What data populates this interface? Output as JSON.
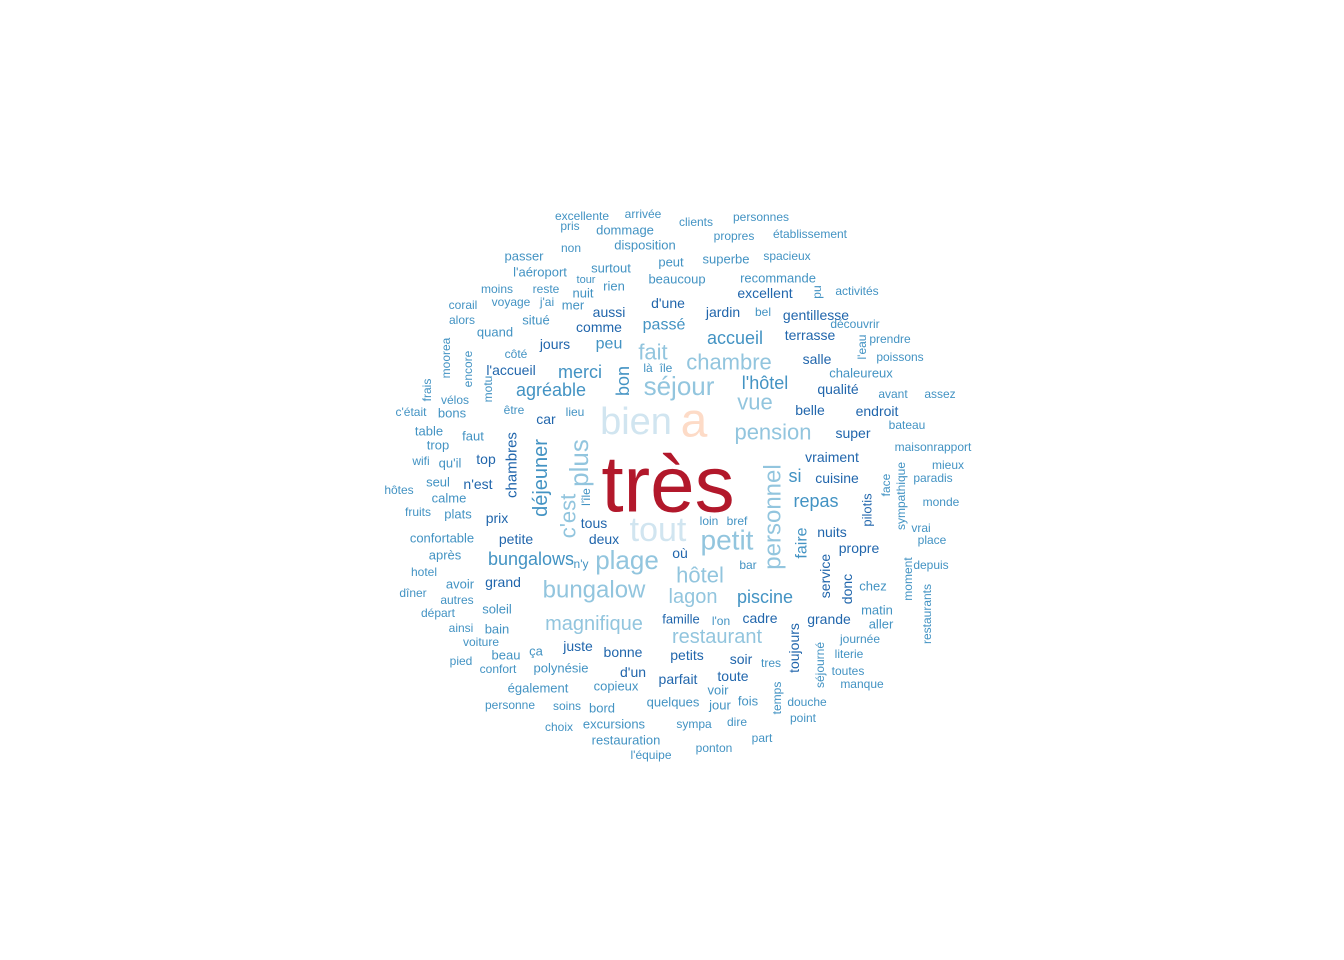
{
  "colors": {
    "c_red": "#b2182b",
    "c_peach": "#fddbc7",
    "c_pale": "#d1e5f0",
    "c_light": "#92c5de",
    "c_mid": "#4393c3",
    "c_dark": "#2166ac"
  },
  "words": [
    {
      "text": "très",
      "color": "c_red"
    },
    {
      "text": "a",
      "color": "c_peach"
    },
    {
      "text": "bien",
      "color": "c_pale"
    },
    {
      "text": "tout",
      "color": "c_pale"
    },
    {
      "text": "petit",
      "color": "c_light"
    },
    {
      "text": "séjour",
      "color": "c_light"
    },
    {
      "text": "plus",
      "color": "c_light"
    },
    {
      "text": "plage",
      "color": "c_light"
    },
    {
      "text": "bungalow",
      "color": "c_light"
    },
    {
      "text": "personnel",
      "color": "c_light"
    },
    {
      "text": "chambre",
      "color": "c_light"
    },
    {
      "text": "pension",
      "color": "c_light"
    },
    {
      "text": "hôtel",
      "color": "c_light"
    },
    {
      "text": "c'est",
      "color": "c_light"
    },
    {
      "text": "magnifique",
      "color": "c_light"
    },
    {
      "text": "restaurant",
      "color": "c_light"
    },
    {
      "text": "vue",
      "color": "c_light"
    },
    {
      "text": "fait",
      "color": "c_light"
    },
    {
      "text": "lagon",
      "color": "c_light"
    },
    {
      "text": "déjeuner",
      "color": "c_mid"
    },
    {
      "text": "bon",
      "color": "c_mid"
    },
    {
      "text": "accueil",
      "color": "c_mid"
    },
    {
      "text": "merci",
      "color": "c_mid"
    },
    {
      "text": "agréable",
      "color": "c_mid"
    },
    {
      "text": "bungalows",
      "color": "c_mid"
    },
    {
      "text": "repas",
      "color": "c_mid"
    },
    {
      "text": "l'hôtel",
      "color": "c_mid"
    },
    {
      "text": "piscine",
      "color": "c_mid"
    },
    {
      "text": "passé",
      "color": "c_mid"
    },
    {
      "text": "peu",
      "color": "c_mid"
    },
    {
      "text": "si",
      "color": "c_mid"
    },
    {
      "text": "faire",
      "color": "c_mid"
    },
    {
      "text": "chambres",
      "color": "c_dark"
    },
    {
      "text": "jardin",
      "color": "c_dark"
    },
    {
      "text": "comme",
      "color": "c_dark"
    },
    {
      "text": "aussi",
      "color": "c_dark"
    },
    {
      "text": "d'une",
      "color": "c_dark"
    },
    {
      "text": "vraiment",
      "color": "c_dark"
    },
    {
      "text": "belle",
      "color": "c_dark"
    },
    {
      "text": "qualité",
      "color": "c_dark"
    },
    {
      "text": "terrasse",
      "color": "c_dark"
    },
    {
      "text": "salle",
      "color": "c_dark"
    },
    {
      "text": "endroit",
      "color": "c_dark"
    },
    {
      "text": "super",
      "color": "c_dark"
    },
    {
      "text": "cuisine",
      "color": "c_dark"
    },
    {
      "text": "nuits",
      "color": "c_dark"
    },
    {
      "text": "propre",
      "color": "c_dark"
    },
    {
      "text": "service",
      "color": "c_dark"
    },
    {
      "text": "donc",
      "color": "c_dark"
    },
    {
      "text": "pilotis",
      "color": "c_dark"
    },
    {
      "text": "toujours",
      "color": "c_dark"
    },
    {
      "text": "petits",
      "color": "c_dark"
    },
    {
      "text": "soir",
      "color": "c_dark"
    },
    {
      "text": "toute",
      "color": "c_dark"
    },
    {
      "text": "parfait",
      "color": "c_dark"
    },
    {
      "text": "d'un",
      "color": "c_dark"
    },
    {
      "text": "bonne",
      "color": "c_dark"
    },
    {
      "text": "juste",
      "color": "c_dark"
    },
    {
      "text": "cadre",
      "color": "c_dark"
    },
    {
      "text": "grande",
      "color": "c_dark"
    },
    {
      "text": "famille",
      "color": "c_dark"
    },
    {
      "text": "où",
      "color": "c_dark"
    },
    {
      "text": "deux",
      "color": "c_dark"
    },
    {
      "text": "petite",
      "color": "c_dark"
    },
    {
      "text": "grand",
      "color": "c_dark"
    },
    {
      "text": "prix",
      "color": "c_dark"
    },
    {
      "text": "n'est",
      "color": "c_dark"
    },
    {
      "text": "top",
      "color": "c_dark"
    },
    {
      "text": "car",
      "color": "c_dark"
    },
    {
      "text": "jours",
      "color": "c_dark"
    },
    {
      "text": "l'accueil",
      "color": "c_dark"
    },
    {
      "text": "tous",
      "color": "c_dark"
    },
    {
      "text": "excellent",
      "color": "c_dark"
    },
    {
      "text": "gentillesse",
      "color": "c_dark"
    },
    {
      "text": "recommande",
      "color": "c_mid"
    },
    {
      "text": "superbe",
      "color": "c_mid"
    },
    {
      "text": "beaucoup",
      "color": "c_mid"
    },
    {
      "text": "peut",
      "color": "c_mid"
    },
    {
      "text": "rien",
      "color": "c_mid"
    },
    {
      "text": "surtout",
      "color": "c_mid"
    },
    {
      "text": "disposition",
      "color": "c_mid"
    },
    {
      "text": "situé",
      "color": "c_mid"
    },
    {
      "text": "faut",
      "color": "c_mid"
    },
    {
      "text": "mer",
      "color": "c_mid"
    },
    {
      "text": "nuit",
      "color": "c_mid"
    },
    {
      "text": "chaleureux",
      "color": "c_mid"
    },
    {
      "text": "soleil",
      "color": "c_mid"
    },
    {
      "text": "bain",
      "color": "c_mid"
    },
    {
      "text": "copieux",
      "color": "c_mid"
    },
    {
      "text": "polynésie",
      "color": "c_mid"
    },
    {
      "text": "également",
      "color": "c_mid"
    },
    {
      "text": "quelques",
      "color": "c_mid"
    },
    {
      "text": "excursions",
      "color": "c_mid"
    },
    {
      "text": "restauration",
      "color": "c_mid"
    },
    {
      "text": "bord",
      "color": "c_mid"
    },
    {
      "text": "voir",
      "color": "c_mid"
    },
    {
      "text": "fois",
      "color": "c_mid"
    },
    {
      "text": "jour",
      "color": "c_mid"
    },
    {
      "text": "matin",
      "color": "c_mid"
    },
    {
      "text": "aller",
      "color": "c_mid"
    },
    {
      "text": "chez",
      "color": "c_mid"
    },
    {
      "text": "confortable",
      "color": "c_mid"
    },
    {
      "text": "fruits",
      "color": "c_mid"
    },
    {
      "text": "plats",
      "color": "c_mid"
    },
    {
      "text": "calme",
      "color": "c_mid"
    },
    {
      "text": "seul",
      "color": "c_mid"
    },
    {
      "text": "qu'il",
      "color": "c_mid"
    },
    {
      "text": "wifi",
      "color": "c_mid"
    },
    {
      "text": "trop",
      "color": "c_mid"
    },
    {
      "text": "table",
      "color": "c_mid"
    },
    {
      "text": "bons",
      "color": "c_mid"
    },
    {
      "text": "c'était",
      "color": "c_mid"
    },
    {
      "text": "vélos",
      "color": "c_mid"
    },
    {
      "text": "frais",
      "color": "c_mid"
    },
    {
      "text": "moorea",
      "color": "c_mid"
    },
    {
      "text": "encore",
      "color": "c_mid"
    },
    {
      "text": "motu",
      "color": "c_mid"
    },
    {
      "text": "être",
      "color": "c_mid"
    },
    {
      "text": "lieu",
      "color": "c_mid"
    },
    {
      "text": "côté",
      "color": "c_mid"
    },
    {
      "text": "quand",
      "color": "c_mid"
    },
    {
      "text": "alors",
      "color": "c_mid"
    },
    {
      "text": "corail",
      "color": "c_mid"
    },
    {
      "text": "moins",
      "color": "c_mid"
    },
    {
      "text": "voyage",
      "color": "c_mid"
    },
    {
      "text": "j'ai",
      "color": "c_mid"
    },
    {
      "text": "reste",
      "color": "c_mid"
    },
    {
      "text": "tour",
      "color": "c_mid"
    },
    {
      "text": "l'aéroport",
      "color": "c_mid"
    },
    {
      "text": "passer",
      "color": "c_mid"
    },
    {
      "text": "non",
      "color": "c_mid"
    },
    {
      "text": "pris",
      "color": "c_mid"
    },
    {
      "text": "excellente",
      "color": "c_mid"
    },
    {
      "text": "dommage",
      "color": "c_mid"
    },
    {
      "text": "arrivée",
      "color": "c_mid"
    },
    {
      "text": "clients",
      "color": "c_mid"
    },
    {
      "text": "personnes",
      "color": "c_mid"
    },
    {
      "text": "propres",
      "color": "c_mid"
    },
    {
      "text": "établissement",
      "color": "c_mid"
    },
    {
      "text": "spacieux",
      "color": "c_mid"
    },
    {
      "text": "pu",
      "color": "c_mid"
    },
    {
      "text": "activités",
      "color": "c_mid"
    },
    {
      "text": "bel",
      "color": "c_mid"
    },
    {
      "text": "découvrir",
      "color": "c_mid"
    },
    {
      "text": "l'eau",
      "color": "c_mid"
    },
    {
      "text": "prendre",
      "color": "c_mid"
    },
    {
      "text": "poissons",
      "color": "c_mid"
    },
    {
      "text": "avant",
      "color": "c_mid"
    },
    {
      "text": "assez",
      "color": "c_mid"
    },
    {
      "text": "bateau",
      "color": "c_mid"
    },
    {
      "text": "maisonrapport",
      "color": "c_mid"
    },
    {
      "text": "mieux",
      "color": "c_mid"
    },
    {
      "text": "paradis",
      "color": "c_mid"
    },
    {
      "text": "face",
      "color": "c_mid"
    },
    {
      "text": "sympathique",
      "color": "c_mid"
    },
    {
      "text": "monde",
      "color": "c_mid"
    },
    {
      "text": "vrai",
      "color": "c_mid"
    },
    {
      "text": "place",
      "color": "c_mid"
    },
    {
      "text": "moment",
      "color": "c_mid"
    },
    {
      "text": "depuis",
      "color": "c_mid"
    },
    {
      "text": "restaurants",
      "color": "c_mid"
    },
    {
      "text": "journée",
      "color": "c_mid"
    },
    {
      "text": "literie",
      "color": "c_mid"
    },
    {
      "text": "toutes",
      "color": "c_mid"
    },
    {
      "text": "manque",
      "color": "c_mid"
    },
    {
      "text": "séjourné",
      "color": "c_mid"
    },
    {
      "text": "douche",
      "color": "c_mid"
    },
    {
      "text": "point",
      "color": "c_mid"
    },
    {
      "text": "temps",
      "color": "c_mid"
    },
    {
      "text": "tres",
      "color": "c_mid"
    },
    {
      "text": "part",
      "color": "c_mid"
    },
    {
      "text": "dire",
      "color": "c_mid"
    },
    {
      "text": "sympa",
      "color": "c_mid"
    },
    {
      "text": "ponton",
      "color": "c_mid"
    },
    {
      "text": "l'équipe",
      "color": "c_mid"
    },
    {
      "text": "choix",
      "color": "c_mid"
    },
    {
      "text": "soins",
      "color": "c_mid"
    },
    {
      "text": "personne",
      "color": "c_mid"
    },
    {
      "text": "confort",
      "color": "c_mid"
    },
    {
      "text": "pied",
      "color": "c_mid"
    },
    {
      "text": "beau",
      "color": "c_mid"
    },
    {
      "text": "ça",
      "color": "c_mid"
    },
    {
      "text": "voiture",
      "color": "c_mid"
    },
    {
      "text": "ainsi",
      "color": "c_mid"
    },
    {
      "text": "départ",
      "color": "c_mid"
    },
    {
      "text": "autres",
      "color": "c_mid"
    },
    {
      "text": "dîner",
      "color": "c_mid"
    },
    {
      "text": "avoir",
      "color": "c_mid"
    },
    {
      "text": "hotel",
      "color": "c_mid"
    },
    {
      "text": "après",
      "color": "c_mid"
    },
    {
      "text": "hôtes",
      "color": "c_mid"
    },
    {
      "text": "l'île",
      "color": "c_mid"
    },
    {
      "text": "n'y",
      "color": "c_mid"
    },
    {
      "text": "bar",
      "color": "c_mid"
    },
    {
      "text": "l'on",
      "color": "c_mid"
    },
    {
      "text": "loin",
      "color": "c_mid"
    },
    {
      "text": "bref",
      "color": "c_mid"
    },
    {
      "text": "là",
      "color": "c_mid"
    },
    {
      "text": "île",
      "color": "c_mid"
    }
  ]
}
